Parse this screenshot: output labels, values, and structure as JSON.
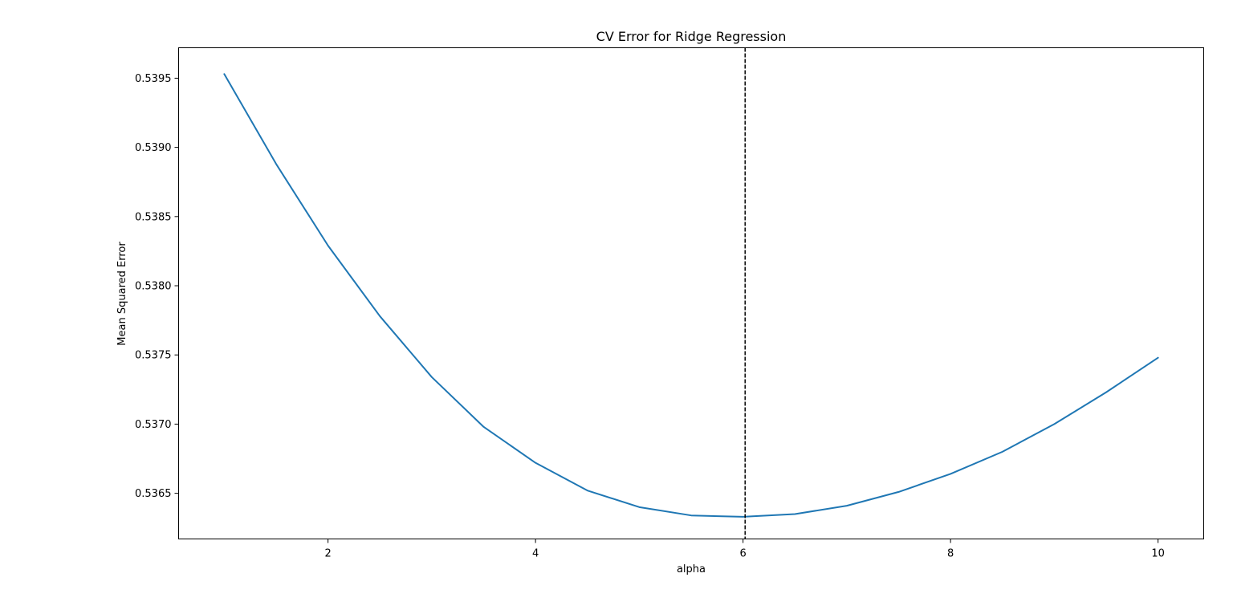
{
  "chart_data": {
    "type": "line",
    "title": "CV Error for Ridge Regression",
    "xlabel": "alpha",
    "ylabel": "Mean Squared Error",
    "xlim": [
      0.56,
      10.44
    ],
    "ylim": [
      0.53617,
      0.53972
    ],
    "xticks": [
      2,
      4,
      6,
      8,
      10
    ],
    "xtick_labels": [
      "2",
      "4",
      "6",
      "8",
      "10"
    ],
    "yticks": [
      0.5365,
      0.537,
      0.5375,
      0.538,
      0.5385,
      0.539,
      0.5395
    ],
    "ytick_labels": [
      "0.5365",
      "0.5370",
      "0.5375",
      "0.5380",
      "0.5385",
      "0.5390",
      "0.5395"
    ],
    "grid": false,
    "series": [
      {
        "color": "#1f77b4",
        "x": [
          1.0,
          1.5,
          2.0,
          2.5,
          3.0,
          3.5,
          4.0,
          4.5,
          5.0,
          5.5,
          6.0,
          6.5,
          7.0,
          7.5,
          8.0,
          8.5,
          9.0,
          9.5,
          10.0
        ],
        "values": [
          0.53953,
          0.53888,
          0.53829,
          0.53778,
          0.53734,
          0.53698,
          0.53672,
          0.53652,
          0.5364,
          0.53634,
          0.53633,
          0.53635,
          0.53641,
          0.53651,
          0.53664,
          0.5368,
          0.537,
          0.53723,
          0.53748
        ]
      }
    ],
    "vlines": [
      {
        "x": 6.02,
        "color": "#000000",
        "style": "dashed"
      }
    ]
  }
}
